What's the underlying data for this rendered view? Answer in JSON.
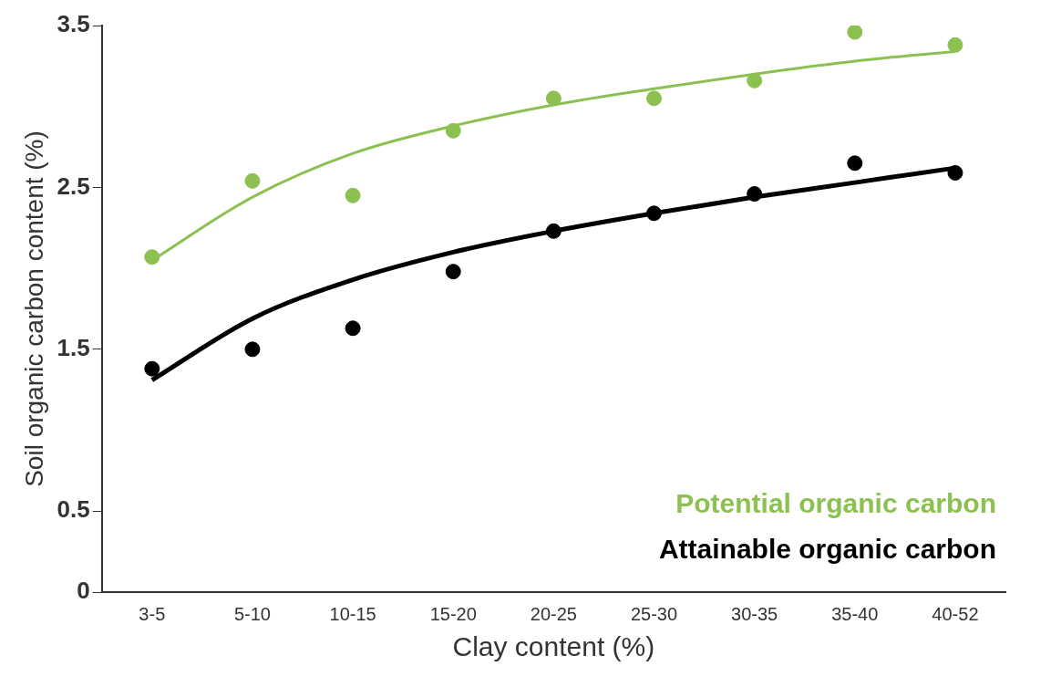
{
  "chart_data": {
    "type": "scatter",
    "xlabel": "Clay content (%)",
    "ylabel": "Soil organic carbon content (%)",
    "categories": [
      "3-5",
      "5-10",
      "10-15",
      "15-20",
      "20-25",
      "25-30",
      "30-35",
      "35-40",
      "40-52"
    ],
    "ylim": [
      0,
      3.5
    ],
    "yticks": [
      0,
      0.5,
      1.5,
      2.5,
      3.5
    ],
    "grid": false,
    "legend": "bottom right",
    "marker": "circle",
    "series": [
      {
        "name": "Potential organic carbon",
        "color": "#8cc152",
        "values": [
          2.07,
          2.54,
          2.45,
          2.85,
          3.05,
          3.05,
          3.16,
          3.46,
          3.38
        ]
      },
      {
        "name": "Attainable organic carbon",
        "color": "#000000",
        "values": [
          1.38,
          1.5,
          1.63,
          1.98,
          2.23,
          2.34,
          2.46,
          2.65,
          2.59
        ]
      },
      {
        "type": "line",
        "marker": "none",
        "color": "#8cc152",
        "values": [
          2.05,
          2.44,
          2.71,
          2.88,
          3.01,
          3.11,
          3.2,
          3.28,
          3.34
        ]
      },
      {
        "type": "line",
        "marker": "none",
        "color": "#000000",
        "values": [
          1.31,
          1.69,
          1.93,
          2.1,
          2.23,
          2.34,
          2.44,
          2.53,
          2.62
        ]
      }
    ]
  }
}
